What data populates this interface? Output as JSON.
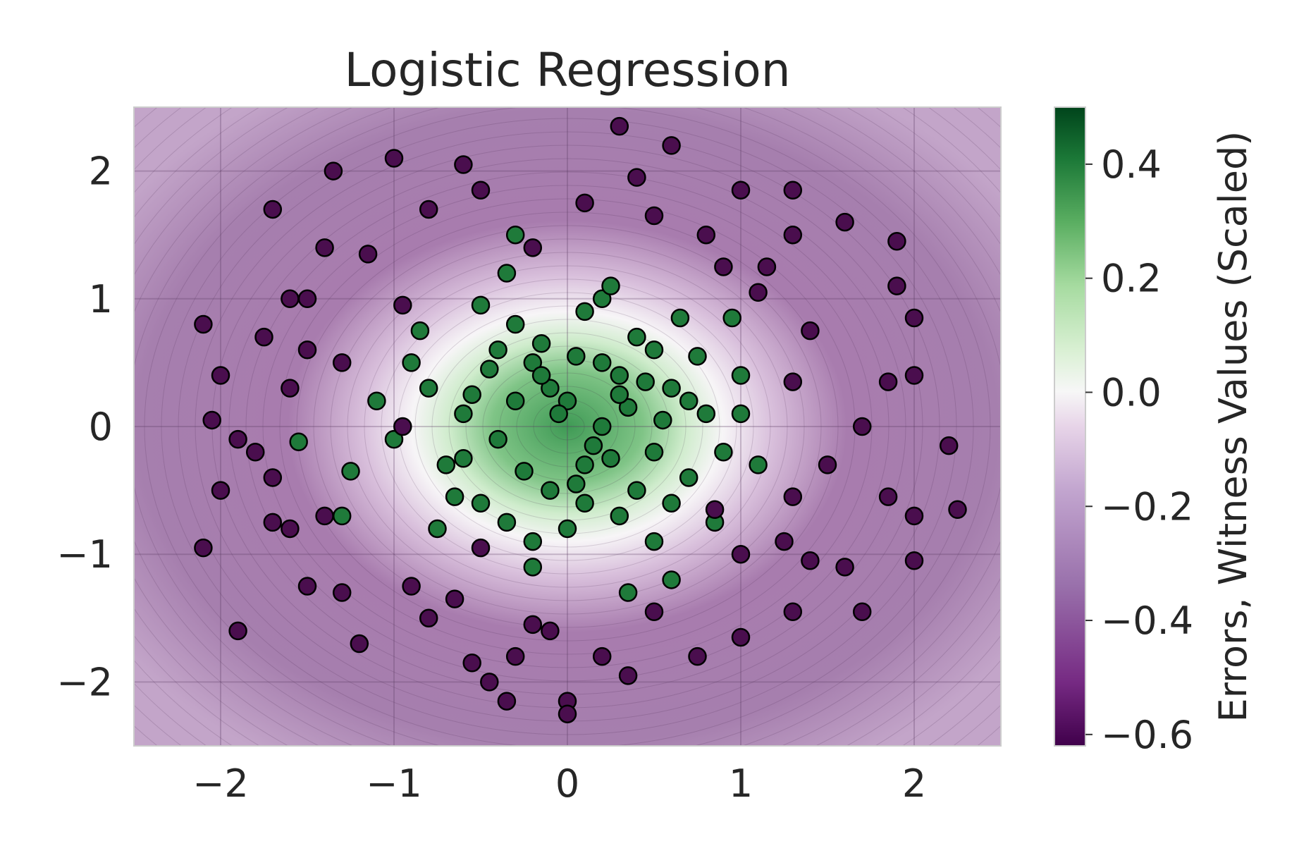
{
  "chart_data": {
    "type": "scatter",
    "title": "Logistic Regression",
    "xlabel": "",
    "ylabel": "",
    "xlim": [
      -2.5,
      2.5
    ],
    "ylim": [
      -2.5,
      2.5
    ],
    "xticks": [
      {
        "value": -2,
        "label": "−2"
      },
      {
        "value": -1,
        "label": "−1"
      },
      {
        "value": 0,
        "label": "0"
      },
      {
        "value": 1,
        "label": "1"
      },
      {
        "value": 2,
        "label": "2"
      }
    ],
    "yticks": [
      {
        "value": -2,
        "label": "−2"
      },
      {
        "value": -1,
        "label": "−1"
      },
      {
        "value": 0,
        "label": "0"
      },
      {
        "value": 1,
        "label": "1"
      },
      {
        "value": 2,
        "label": "2"
      }
    ],
    "grid": true,
    "background": "witness value field, green at center fading to white then purple outward",
    "colorbar": {
      "label": "Errors, Witness Values (Scaled)",
      "range": [
        -0.62,
        0.5
      ],
      "ticks": [
        {
          "value": 0.4,
          "label": "0.4"
        },
        {
          "value": 0.2,
          "label": "0.2"
        },
        {
          "value": 0.0,
          "label": "0.0"
        },
        {
          "value": -0.2,
          "label": "−0.2"
        },
        {
          "value": -0.4,
          "label": "−0.4"
        },
        {
          "value": -0.6,
          "label": "−0.6"
        }
      ],
      "colormap": "PRGn"
    },
    "series": [
      {
        "color": "#1f7a3a",
        "marker_edge": "#000000",
        "points": [
          [
            0.0,
            0.2
          ],
          [
            0.1,
            -0.3
          ],
          [
            -0.2,
            0.5
          ],
          [
            0.3,
            0.4
          ],
          [
            -0.4,
            -0.1
          ],
          [
            0.5,
            -0.2
          ],
          [
            0.2,
            0.0
          ],
          [
            -0.1,
            -0.5
          ],
          [
            0.4,
            0.7
          ],
          [
            -0.3,
            0.8
          ],
          [
            0.6,
            0.3
          ],
          [
            -0.6,
            0.1
          ],
          [
            0.7,
            -0.4
          ],
          [
            -0.5,
            -0.6
          ],
          [
            0.1,
            0.9
          ],
          [
            0.0,
            -0.8
          ],
          [
            0.8,
            0.1
          ],
          [
            -0.8,
            0.3
          ],
          [
            0.3,
            -0.7
          ],
          [
            -0.2,
            -0.9
          ],
          [
            0.5,
            0.6
          ],
          [
            -0.7,
            -0.3
          ],
          [
            0.9,
            -0.2
          ],
          [
            -0.9,
            0.5
          ],
          [
            0.2,
            0.5
          ],
          [
            -0.3,
            0.2
          ],
          [
            0.4,
            -0.5
          ],
          [
            -0.1,
            0.3
          ],
          [
            0.6,
            -0.6
          ],
          [
            -0.4,
            0.6
          ],
          [
            0.15,
            -0.15
          ],
          [
            -0.25,
            -0.35
          ],
          [
            0.35,
            0.15
          ],
          [
            -0.45,
            0.45
          ],
          [
            0.55,
            0.05
          ],
          [
            -0.15,
            0.65
          ],
          [
            0.75,
            0.55
          ],
          [
            -0.65,
            -0.55
          ],
          [
            0.05,
            -0.45
          ],
          [
            -0.35,
            -0.75
          ],
          [
            0.45,
            0.35
          ],
          [
            -0.55,
            0.25
          ],
          [
            1.0,
            0.4
          ],
          [
            -1.0,
            -0.1
          ],
          [
            0.2,
            1.0
          ],
          [
            -0.2,
            -1.1
          ],
          [
            1.1,
            -0.3
          ],
          [
            -1.1,
            0.2
          ],
          [
            0.85,
            -0.75
          ],
          [
            -0.85,
            0.75
          ],
          [
            0.65,
            0.85
          ],
          [
            -0.75,
            -0.8
          ],
          [
            -1.25,
            -0.35
          ],
          [
            -1.55,
            -0.12
          ],
          [
            -1.3,
            -0.7
          ],
          [
            0.35,
            -1.3
          ],
          [
            0.6,
            -1.2
          ],
          [
            -0.3,
            1.5
          ],
          [
            -0.35,
            1.2
          ],
          [
            0.25,
            1.1
          ],
          [
            0.95,
            0.85
          ],
          [
            1.0,
            0.1
          ],
          [
            0.1,
            -0.6
          ],
          [
            -0.05,
            0.1
          ],
          [
            0.25,
            -0.25
          ],
          [
            -0.6,
            -0.25
          ],
          [
            0.7,
            0.2
          ],
          [
            -0.15,
            0.4
          ],
          [
            0.05,
            0.55
          ],
          [
            0.5,
            -0.9
          ],
          [
            -0.5,
            0.95
          ],
          [
            0.3,
            0.25
          ]
        ]
      },
      {
        "color": "#4a0e4e",
        "marker_edge": "#000000",
        "points": [
          [
            -2.1,
            0.8
          ],
          [
            -2.0,
            0.4
          ],
          [
            -1.9,
            -0.1
          ],
          [
            -2.0,
            -0.5
          ],
          [
            -2.1,
            -0.95
          ],
          [
            -1.9,
            -1.6
          ],
          [
            -1.7,
            1.7
          ],
          [
            -1.6,
            1.0
          ],
          [
            -1.5,
            0.6
          ],
          [
            -1.6,
            0.3
          ],
          [
            -1.7,
            -0.4
          ],
          [
            -1.6,
            -0.8
          ],
          [
            -1.5,
            -1.25
          ],
          [
            -1.4,
            1.4
          ],
          [
            -1.3,
            0.5
          ],
          [
            -1.4,
            -0.7
          ],
          [
            -1.3,
            -1.3
          ],
          [
            -1.2,
            -1.7
          ],
          [
            -1.35,
            2.0
          ],
          [
            -1.0,
            2.1
          ],
          [
            -0.6,
            2.05
          ],
          [
            -0.8,
            1.7
          ],
          [
            -0.5,
            1.85
          ],
          [
            -0.2,
            1.4
          ],
          [
            0.1,
            1.75
          ],
          [
            0.4,
            1.95
          ],
          [
            0.3,
            2.35
          ],
          [
            0.6,
            2.2
          ],
          [
            0.8,
            1.5
          ],
          [
            1.0,
            1.85
          ],
          [
            1.3,
            1.85
          ],
          [
            1.6,
            1.6
          ],
          [
            1.9,
            1.45
          ],
          [
            1.9,
            1.1
          ],
          [
            2.0,
            0.85
          ],
          [
            2.0,
            0.4
          ],
          [
            2.2,
            -0.15
          ],
          [
            2.0,
            -0.7
          ],
          [
            2.25,
            -0.65
          ],
          [
            2.0,
            -1.05
          ],
          [
            1.6,
            -1.1
          ],
          [
            1.4,
            -1.05
          ],
          [
            1.7,
            -1.45
          ],
          [
            1.3,
            -1.45
          ],
          [
            1.0,
            -1.0
          ],
          [
            1.0,
            -1.65
          ],
          [
            0.75,
            -1.8
          ],
          [
            0.35,
            -1.95
          ],
          [
            0.0,
            -2.15
          ],
          [
            0.0,
            -2.25
          ],
          [
            -0.35,
            -2.15
          ],
          [
            -0.55,
            -1.85
          ],
          [
            -0.45,
            -2.0
          ],
          [
            -0.3,
            -1.8
          ],
          [
            -0.2,
            -1.55
          ],
          [
            0.2,
            -1.8
          ],
          [
            -0.8,
            -1.5
          ],
          [
            -0.9,
            -1.25
          ],
          [
            -0.65,
            -1.35
          ],
          [
            -1.7,
            -0.75
          ],
          [
            -1.75,
            0.7
          ],
          [
            -1.5,
            1.0
          ],
          [
            -0.95,
            0.0
          ],
          [
            -0.1,
            -1.6
          ],
          [
            0.5,
            -1.45
          ],
          [
            1.3,
            -0.55
          ],
          [
            1.5,
            -0.3
          ],
          [
            1.7,
            0.0
          ],
          [
            1.3,
            0.35
          ],
          [
            1.4,
            0.75
          ],
          [
            1.3,
            1.5
          ],
          [
            0.9,
            1.25
          ],
          [
            1.1,
            1.05
          ],
          [
            0.5,
            1.65
          ],
          [
            -0.5,
            -0.95
          ],
          [
            -0.95,
            0.95
          ],
          [
            -1.15,
            1.35
          ],
          [
            1.85,
            0.35
          ],
          [
            1.85,
            -0.55
          ],
          [
            1.25,
            -0.9
          ],
          [
            0.85,
            -0.65
          ],
          [
            -2.05,
            0.05
          ],
          [
            -1.8,
            -0.2
          ],
          [
            1.15,
            1.25
          ]
        ]
      }
    ]
  }
}
